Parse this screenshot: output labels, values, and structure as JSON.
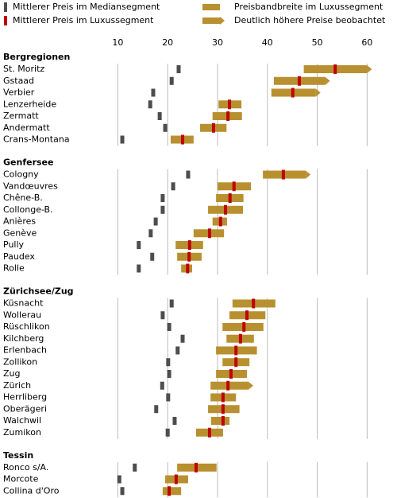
{
  "chart_data": {
    "type": "range",
    "legend": [
      {
        "label": "Mittlerer Preis im Mediansegment",
        "marker": "median"
      },
      {
        "label": "Mittlerer Preis im Luxussegment",
        "marker": "luxury"
      },
      {
        "label": "Preisbandbreite im Luxussegment",
        "marker": "range"
      },
      {
        "label": "Deutlich höhere Preise beobachtet",
        "marker": "arrow"
      }
    ],
    "colors": {
      "median": "#4d4d4d",
      "luxury": "#c00000",
      "range": "#b8902f"
    },
    "xlim": [
      5,
      64
    ],
    "xticks": [
      10,
      20,
      30,
      40,
      50,
      60
    ],
    "grid": true,
    "groups": [
      {
        "name": "Bergregionen",
        "categories": [
          "St. Moritz",
          "Gstaad",
          "Verbier",
          "Lenzerheide",
          "Zermatt",
          "Andermatt",
          "Crans-Montana"
        ],
        "median": [
          22.2,
          20.8,
          17.1,
          16.5,
          18.4,
          19.5,
          10.9
        ],
        "luxury": [
          53.6,
          46.4,
          45.1,
          32.4,
          32.1,
          29.2,
          23.0
        ],
        "low": [
          47.3,
          41.3,
          40.8,
          30.2,
          29.0,
          26.5,
          20.6
        ],
        "high": [
          60.0,
          51.6,
          49.7,
          34.8,
          34.9,
          31.8,
          25.2
        ],
        "arrow": [
          true,
          true,
          true,
          false,
          false,
          false,
          false
        ]
      },
      {
        "name": "Genfersee",
        "categories": [
          "Cologny",
          "Vandœuvres",
          "Chêne-B.",
          "Collonge-B.",
          "Anières",
          "Genève",
          "Pully",
          "Paudex",
          "Rolle"
        ],
        "median": [
          24.1,
          21.1,
          19.0,
          19.0,
          17.6,
          16.6,
          14.2,
          16.9,
          14.2
        ],
        "luxury": [
          43.2,
          33.3,
          32.5,
          31.6,
          30.6,
          28.4,
          24.4,
          24.3,
          24.0
        ],
        "low": [
          39.1,
          30.0,
          29.7,
          28.1,
          29.0,
          25.2,
          21.6,
          21.9,
          22.7
        ],
        "high": [
          47.7,
          36.7,
          35.2,
          35.1,
          31.9,
          31.3,
          27.1,
          26.8,
          24.9
        ],
        "arrow": [
          true,
          false,
          false,
          false,
          false,
          false,
          false,
          false,
          false
        ]
      },
      {
        "name": "Zürichsee/Zug",
        "categories": [
          "Küsnacht",
          "Wollerau",
          "Rüschlikon",
          "Kilchberg",
          "Erlenbach",
          "Zollikon",
          "Zug",
          "Zürich",
          "Herrliberg",
          "Oberägeri",
          "Walchwil",
          "Zumikon"
        ],
        "median": [
          20.8,
          19.0,
          20.3,
          23.0,
          22.0,
          20.1,
          20.3,
          18.9,
          20.1,
          17.7,
          21.4,
          20.0
        ],
        "luxury": [
          37.2,
          35.9,
          35.3,
          34.6,
          33.7,
          33.7,
          32.7,
          32.1,
          31.1,
          31.1,
          31.1,
          28.4
        ],
        "low": [
          33.0,
          32.4,
          31.0,
          31.8,
          29.7,
          31.0,
          29.7,
          28.6,
          28.6,
          28.1,
          28.7,
          25.7
        ],
        "high": [
          41.6,
          39.6,
          39.2,
          37.3,
          37.9,
          36.4,
          35.9,
          36.2,
          33.7,
          34.4,
          32.4,
          31.1
        ],
        "arrow": [
          false,
          false,
          false,
          false,
          false,
          false,
          false,
          true,
          false,
          false,
          false,
          false
        ]
      },
      {
        "name": "Tessin",
        "categories": [
          "Ronco s/A.",
          "Morcote",
          "Collina d'Oro"
        ],
        "median": [
          13.4,
          10.3,
          10.9
        ],
        "luxury": [
          25.7,
          21.7,
          20.3
        ],
        "low": [
          21.9,
          19.5,
          19.0
        ],
        "high": [
          29.8,
          24.1,
          22.7
        ],
        "arrow": [
          false,
          false,
          false
        ]
      }
    ]
  }
}
